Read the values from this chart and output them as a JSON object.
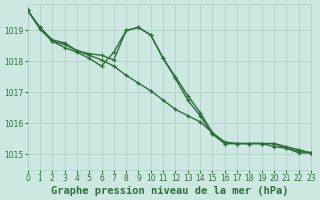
{
  "title": "Graphe pression niveau de la mer (hPa)",
  "bg_color": "#cce8e0",
  "grid_color": "#aaccc4",
  "line_color": "#2d6e3a",
  "xlim": [
    0,
    23
  ],
  "ylim": [
    1014.5,
    1019.85
  ],
  "yticks": [
    1015,
    1016,
    1017,
    1018,
    1019
  ],
  "xticks": [
    0,
    1,
    2,
    3,
    4,
    5,
    6,
    7,
    8,
    9,
    10,
    11,
    12,
    13,
    14,
    15,
    16,
    17,
    18,
    19,
    20,
    21,
    22,
    23
  ],
  "series1": [
    1019.65,
    1019.05,
    1018.65,
    1018.55,
    1018.35,
    1018.2,
    1018.05,
    1017.85,
    1017.55,
    1017.3,
    1017.05,
    1016.75,
    1016.45,
    1016.25,
    1016.05,
    1015.7,
    1015.4,
    1015.35,
    1015.35,
    1015.35,
    1015.25,
    1015.2,
    1015.05,
    1015.05
  ],
  "series2": [
    1019.65,
    1019.1,
    1018.65,
    1018.45,
    1018.3,
    1018.1,
    1017.85,
    1018.3,
    1019.0,
    1019.1,
    1018.85,
    1018.1,
    1017.45,
    1016.75,
    1016.25,
    1015.65,
    1015.35,
    1015.35,
    1015.35,
    1015.35,
    1015.35,
    1015.2,
    1015.1,
    1015.05
  ],
  "series3": [
    1019.65,
    1019.1,
    1018.7,
    1018.6,
    1018.35,
    1018.25,
    1018.2,
    1018.05,
    1019.0,
    1019.1,
    1018.85,
    1018.1,
    1017.5,
    1016.9,
    1016.35,
    1015.7,
    1015.35,
    1015.35,
    1015.35,
    1015.35,
    1015.35,
    1015.25,
    1015.15,
    1015.05
  ],
  "linewidth": 1.0,
  "marker_size": 3.5,
  "title_fontsize": 7.5,
  "tick_fontsize": 5.5
}
